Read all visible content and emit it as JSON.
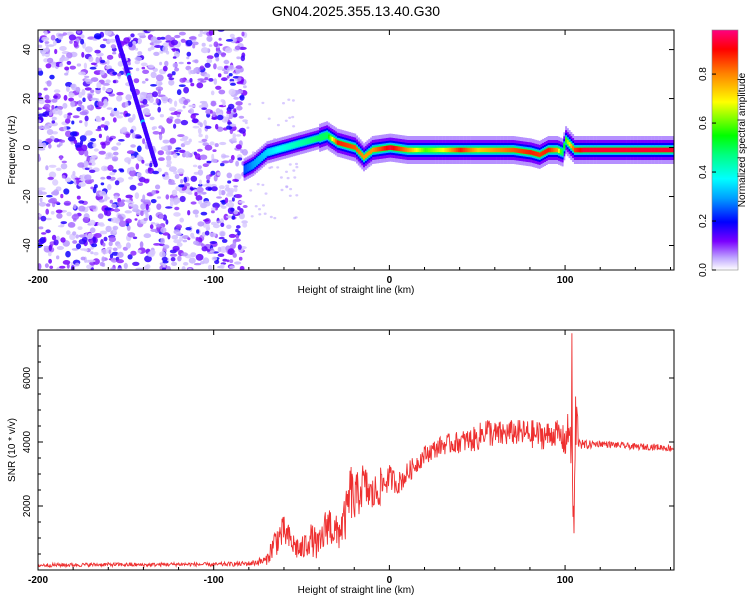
{
  "title": "GN04.2025.355.13.40.G30",
  "chart_data": [
    {
      "type": "heatmap",
      "name": "spectrogram",
      "xlabel": "Height of straight line (km)",
      "ylabel": "Frequency (Hz)",
      "xlim": [
        -200,
        162
      ],
      "ylim": [
        -50,
        48
      ],
      "xticks": [
        -200,
        -100,
        0,
        100
      ],
      "yticks": [
        -40,
        -20,
        0,
        20,
        40
      ],
      "colorbar": {
        "label": "Normalized spectral amplitude",
        "range": [
          0.0,
          0.98
        ],
        "ticks": [
          0.0,
          0.2,
          0.4,
          0.6,
          0.8
        ],
        "tick_labels": [
          "0.0",
          "0.2",
          "0.4",
          "0.6",
          "0.8"
        ],
        "colors": [
          "#ffffff",
          "#a090ff",
          "#6a00ff",
          "#0000ff",
          "#00a0ff",
          "#00ffff",
          "#00ff80",
          "#00ff00",
          "#ffff00",
          "#ff8000",
          "#ff0000",
          "#ff0080"
        ]
      },
      "ridge": {
        "x": [
          -83,
          -78,
          -70,
          -60,
          -50,
          -40,
          -36,
          -30,
          -20,
          -15,
          -10,
          0,
          10,
          20,
          30,
          40,
          50,
          60,
          70,
          80,
          85,
          90,
          95,
          98,
          100,
          105,
          110,
          120,
          130,
          140,
          150,
          162
        ],
        "y": [
          -9,
          -7,
          -2,
          0,
          2,
          4,
          5,
          2,
          0,
          -4,
          -1,
          0,
          -1,
          -1,
          -1,
          -1,
          -1,
          -1,
          -1,
          -2,
          -3,
          -1,
          -1,
          -2,
          3,
          -1,
          -1,
          -1,
          -1,
          -1,
          -1,
          -1
        ],
        "amplitude": [
          0.25,
          0.3,
          0.35,
          0.4,
          0.45,
          0.5,
          0.5,
          0.9,
          0.85,
          0.8,
          0.8,
          0.95,
          0.8,
          0.6,
          0.7,
          0.9,
          0.75,
          0.8,
          0.85,
          0.9,
          0.88,
          0.9,
          0.8,
          0.5,
          0.6,
          0.88,
          0.95,
          0.95,
          0.95,
          0.95,
          0.95,
          0.95
        ]
      },
      "streak": {
        "x_start": -155,
        "y_start": 45,
        "x_end": -133,
        "y_end": -7
      }
    },
    {
      "type": "line",
      "name": "snr",
      "xlabel": "Height of straight line (km)",
      "ylabel": "SNR (10 * v/v)",
      "xlim": [
        -200,
        162
      ],
      "ylim": [
        0,
        7500
      ],
      "xticks": [
        -200,
        -100,
        0,
        100
      ],
      "yticks": [
        2000,
        4000,
        6000
      ],
      "color": "#ee3030",
      "series": [
        {
          "name": "SNR",
          "x": [
            -200,
            -180,
            -160,
            -140,
            -120,
            -100,
            -80,
            -70,
            -65,
            -60,
            -55,
            -50,
            -45,
            -40,
            -35,
            -30,
            -25,
            -22,
            -20,
            -15,
            -10,
            -5,
            0,
            5,
            10,
            15,
            20,
            30,
            40,
            50,
            55,
            60,
            70,
            80,
            90,
            95,
            100,
            103,
            105,
            106,
            108,
            110,
            120,
            130,
            140,
            150,
            162
          ],
          "y": [
            150,
            160,
            170,
            160,
            180,
            170,
            200,
            300,
            900,
            1200,
            800,
            600,
            1000,
            700,
            1500,
            1100,
            1600,
            2500,
            2100,
            2700,
            2300,
            2600,
            2900,
            2700,
            3000,
            3300,
            3600,
            3900,
            4000,
            4100,
            4400,
            4200,
            4300,
            4250,
            4200,
            4300,
            4000,
            4500,
            1500,
            4800,
            4100,
            3900,
            3950,
            3900,
            3850,
            3850,
            3800
          ],
          "noise": [
            60,
            60,
            60,
            60,
            60,
            60,
            80,
            150,
            500,
            500,
            400,
            400,
            500,
            500,
            700,
            600,
            700,
            900,
            800,
            700,
            600,
            600,
            400,
            350,
            350,
            300,
            300,
            300,
            350,
            400,
            450,
            450,
            400,
            450,
            450,
            400,
            500,
            800,
            1200,
            1200,
            300,
            150,
            100,
            100,
            100,
            100,
            100
          ]
        }
      ]
    }
  ]
}
